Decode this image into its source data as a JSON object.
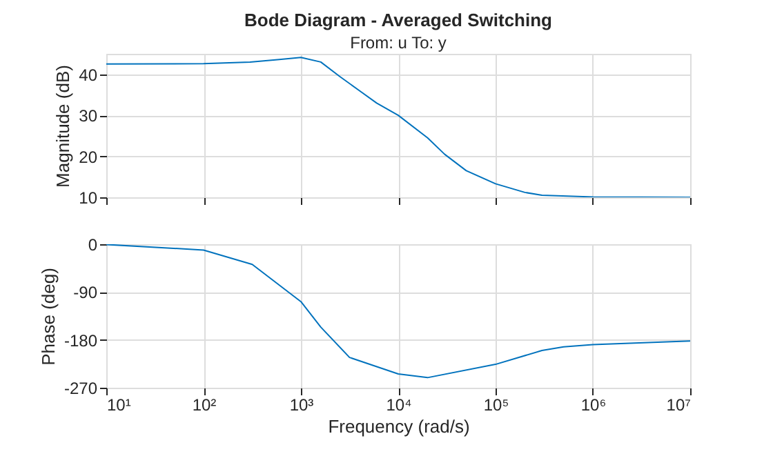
{
  "chart_data": [
    {
      "type": "line",
      "title": "Bode Diagram - Averaged Switching",
      "subtitle": "From: u  To: y",
      "ylabel": "Magnitude (dB)",
      "log": "x",
      "grid": true,
      "tick_labels": "y",
      "x": [
        10,
        100,
        300,
        600,
        1000,
        1600,
        2500,
        4000,
        6000,
        10000,
        20000,
        30000,
        50000,
        100000,
        200000,
        300000,
        1000000,
        10000000
      ],
      "series": [
        {
          "color": "#0072bd",
          "values": [
            42.5,
            42.6,
            43.0,
            43.6,
            44.1,
            43.0,
            39.5,
            36,
            33,
            30,
            24.5,
            20.5,
            16.5,
            13.3,
            11.2,
            10.5,
            10.1,
            10
          ]
        }
      ],
      "xlim": [
        10,
        10000000
      ],
      "ylim": [
        10,
        45
      ],
      "yticks": [
        10,
        20,
        30,
        40
      ],
      "xticks": [
        {
          "value": 10,
          "label": null
        },
        {
          "value": 100,
          "label": null
        },
        {
          "value": 1000,
          "label": null
        },
        {
          "value": 10000,
          "label": null
        },
        {
          "value": 100000,
          "label": null
        },
        {
          "value": 1000000,
          "label": null
        },
        {
          "value": 10000000,
          "label": null
        }
      ]
    },
    {
      "type": "line",
      "xlabel": "Frequency (rad/s)",
      "ylabel": "Phase (deg)",
      "log": "x",
      "grid": true,
      "x": [
        10,
        100,
        316,
        1000,
        1600,
        3160,
        10000,
        20000,
        100000,
        300000,
        500000,
        1000000,
        10000000
      ],
      "series": [
        {
          "color": "#0072bd",
          "values": [
            -0.5,
            -11,
            -38,
            -108,
            -156,
            -213,
            -244,
            -251,
            -226,
            -200,
            -193,
            -189,
            -182
          ]
        }
      ],
      "xlim": [
        10,
        10000000
      ],
      "ylim": [
        -270,
        0
      ],
      "yticks": [
        -270,
        -180,
        -90,
        0
      ],
      "xticks": [
        {
          "value": 10,
          "label": "10¹"
        },
        {
          "value": 100,
          "label": "10²"
        },
        {
          "value": 1000,
          "label": "10³"
        },
        {
          "value": 10000,
          "label": "10⁴"
        },
        {
          "value": 100000,
          "label": "10⁵"
        },
        {
          "value": 1000000,
          "label": "10⁶"
        },
        {
          "value": 10000000,
          "label": "10⁷"
        }
      ]
    }
  ]
}
